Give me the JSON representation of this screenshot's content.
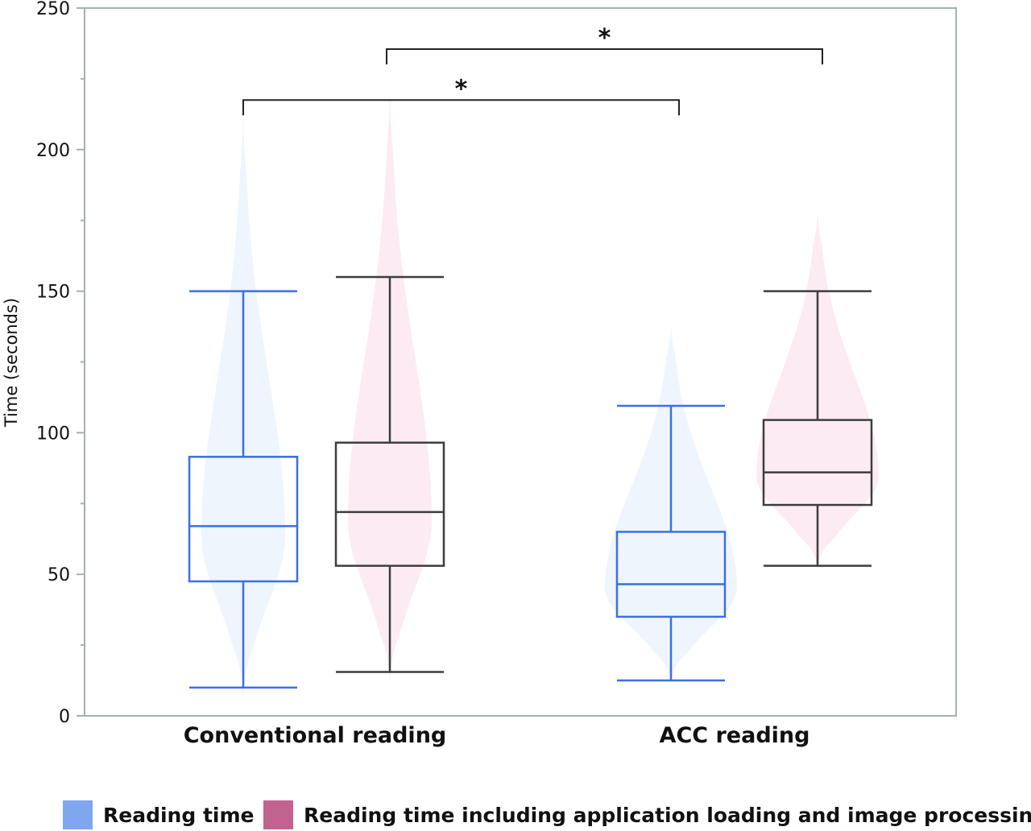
{
  "chart_data": {
    "type": "box-violin",
    "title": "",
    "xlabel": "",
    "ylabel": "Time (seconds)",
    "ylim": [
      0,
      250
    ],
    "yticks": [
      0,
      50,
      100,
      150,
      200,
      250
    ],
    "yminor_step": 25,
    "grid": false,
    "categories": [
      "Conventional reading",
      "ACC reading"
    ],
    "legend_position": "bottom",
    "series": [
      {
        "name": "Reading time",
        "box_color": "#3b6fe6",
        "violin_color": "#eef5fd",
        "legend_color": "#7fa7f0",
        "boxes": [
          {
            "min": 10,
            "q1": 47.5,
            "median": 67,
            "q3": 91.5,
            "max": 150,
            "violin_range": [
              7,
              210
            ]
          },
          {
            "min": 12.5,
            "q1": 35,
            "median": 46.5,
            "q3": 65,
            "max": 109.5,
            "violin_range": [
              12,
              137
            ]
          }
        ]
      },
      {
        "name": "Reading time including application loading and image processing time",
        "box_color": "#3d3d3d",
        "violin_color": "#fdebf4",
        "legend_color": "#c2628f",
        "boxes": [
          {
            "min": 15.5,
            "q1": 53,
            "median": 72,
            "q3": 96.5,
            "max": 155,
            "violin_range": [
              12,
              218
            ]
          },
          {
            "min": 53,
            "q1": 74.5,
            "median": 86,
            "q3": 104.5,
            "max": 150,
            "violin_range": [
              52,
              177
            ]
          }
        ]
      }
    ],
    "annotations": [
      {
        "label": "*",
        "from": "Conventional reading / Reading time",
        "to": "ACC reading / Reading time",
        "y": 217.5
      },
      {
        "label": "*",
        "from": "Conventional reading / Reading time including application loading and image processing time",
        "to": "ACC reading / Reading time including application loading and image processing time",
        "y": 235.5
      }
    ]
  }
}
